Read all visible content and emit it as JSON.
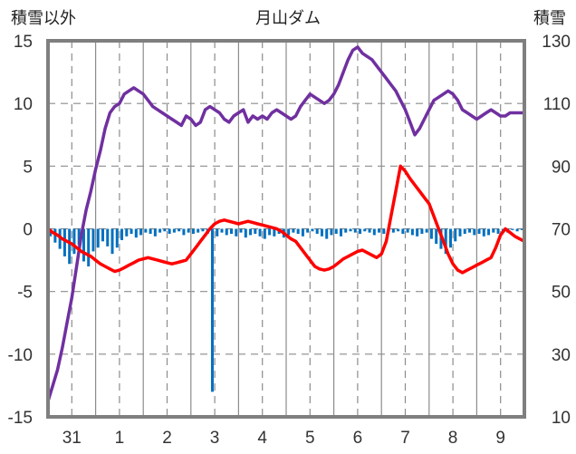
{
  "chart_data": {
    "type": "line",
    "title": "月山ダム",
    "left_axis_label": "積雪以外",
    "right_axis_label": "積雪",
    "x_tick_labels": [
      "31",
      "1",
      "2",
      "3",
      "4",
      "5",
      "6",
      "7",
      "8",
      "9"
    ],
    "x_tick_positions": [
      0.5,
      1.5,
      2.5,
      3.5,
      4.5,
      5.5,
      6.5,
      7.5,
      8.5,
      9.5
    ],
    "xlim": [
      0,
      10
    ],
    "left_ylim": [
      -15,
      15
    ],
    "left_ticks": [
      15,
      10,
      5,
      0,
      -5,
      -10,
      -15
    ],
    "right_ylim": [
      10,
      130
    ],
    "right_ticks": [
      130,
      110,
      90,
      70,
      50,
      30,
      10
    ],
    "grid": true,
    "series": [
      {
        "axis": "right",
        "color": "#7030a0",
        "values": [
          [
            0.0,
            15
          ],
          [
            0.1,
            20
          ],
          [
            0.2,
            25
          ],
          [
            0.3,
            32
          ],
          [
            0.4,
            40
          ],
          [
            0.5,
            48
          ],
          [
            0.6,
            58
          ],
          [
            0.7,
            68
          ],
          [
            0.8,
            76
          ],
          [
            0.9,
            82
          ],
          [
            1.0,
            89
          ],
          [
            1.1,
            95
          ],
          [
            1.2,
            102
          ],
          [
            1.3,
            107
          ],
          [
            1.4,
            109
          ],
          [
            1.5,
            110
          ],
          [
            1.6,
            113
          ],
          [
            1.7,
            114
          ],
          [
            1.8,
            115
          ],
          [
            1.9,
            114
          ],
          [
            2.0,
            113
          ],
          [
            2.1,
            111
          ],
          [
            2.2,
            109
          ],
          [
            2.3,
            108
          ],
          [
            2.4,
            107
          ],
          [
            2.5,
            106
          ],
          [
            2.6,
            105
          ],
          [
            2.7,
            104
          ],
          [
            2.8,
            103
          ],
          [
            2.9,
            106
          ],
          [
            3.0,
            105
          ],
          [
            3.1,
            103
          ],
          [
            3.2,
            104
          ],
          [
            3.3,
            108
          ],
          [
            3.4,
            109
          ],
          [
            3.5,
            108
          ],
          [
            3.6,
            107
          ],
          [
            3.7,
            105
          ],
          [
            3.8,
            104
          ],
          [
            3.9,
            106
          ],
          [
            4.0,
            107
          ],
          [
            4.1,
            108
          ],
          [
            4.2,
            104
          ],
          [
            4.3,
            106
          ],
          [
            4.4,
            105
          ],
          [
            4.5,
            106
          ],
          [
            4.6,
            105
          ],
          [
            4.7,
            107
          ],
          [
            4.8,
            108
          ],
          [
            4.9,
            107
          ],
          [
            5.0,
            106
          ],
          [
            5.1,
            105
          ],
          [
            5.2,
            106
          ],
          [
            5.3,
            109
          ],
          [
            5.4,
            111
          ],
          [
            5.5,
            113
          ],
          [
            5.6,
            112
          ],
          [
            5.7,
            111
          ],
          [
            5.8,
            110
          ],
          [
            5.9,
            111
          ],
          [
            6.0,
            113
          ],
          [
            6.1,
            116
          ],
          [
            6.2,
            120
          ],
          [
            6.3,
            124
          ],
          [
            6.4,
            127
          ],
          [
            6.5,
            128
          ],
          [
            6.6,
            126
          ],
          [
            6.7,
            125
          ],
          [
            6.8,
            124
          ],
          [
            6.9,
            122
          ],
          [
            7.0,
            120
          ],
          [
            7.1,
            118
          ],
          [
            7.2,
            116
          ],
          [
            7.3,
            114
          ],
          [
            7.4,
            111
          ],
          [
            7.5,
            108
          ],
          [
            7.6,
            104
          ],
          [
            7.7,
            100
          ],
          [
            7.8,
            102
          ],
          [
            7.9,
            105
          ],
          [
            8.0,
            108
          ],
          [
            8.1,
            111
          ],
          [
            8.2,
            112
          ],
          [
            8.3,
            113
          ],
          [
            8.4,
            114
          ],
          [
            8.5,
            113
          ],
          [
            8.6,
            111
          ],
          [
            8.7,
            108
          ],
          [
            8.8,
            107
          ],
          [
            8.9,
            106
          ],
          [
            9.0,
            105
          ],
          [
            9.1,
            106
          ],
          [
            9.2,
            107
          ],
          [
            9.3,
            108
          ],
          [
            9.4,
            107
          ],
          [
            9.5,
            106
          ],
          [
            9.6,
            106
          ],
          [
            9.7,
            107
          ],
          [
            9.8,
            107
          ],
          [
            9.9,
            107
          ],
          [
            10.0,
            107
          ]
        ]
      },
      {
        "axis": "left",
        "color": "#ff0000",
        "values": [
          [
            0.0,
            0.0
          ],
          [
            0.1,
            -0.3
          ],
          [
            0.2,
            -0.5
          ],
          [
            0.3,
            -0.8
          ],
          [
            0.4,
            -1.0
          ],
          [
            0.5,
            -1.2
          ],
          [
            0.6,
            -1.5
          ],
          [
            0.7,
            -1.8
          ],
          [
            0.8,
            -2.0
          ],
          [
            0.9,
            -2.2
          ],
          [
            1.0,
            -2.5
          ],
          [
            1.1,
            -2.8
          ],
          [
            1.2,
            -3.0
          ],
          [
            1.3,
            -3.2
          ],
          [
            1.4,
            -3.4
          ],
          [
            1.5,
            -3.3
          ],
          [
            1.6,
            -3.1
          ],
          [
            1.7,
            -2.9
          ],
          [
            1.8,
            -2.7
          ],
          [
            1.9,
            -2.5
          ],
          [
            2.0,
            -2.4
          ],
          [
            2.1,
            -2.3
          ],
          [
            2.2,
            -2.4
          ],
          [
            2.3,
            -2.5
          ],
          [
            2.4,
            -2.6
          ],
          [
            2.5,
            -2.7
          ],
          [
            2.6,
            -2.8
          ],
          [
            2.7,
            -2.7
          ],
          [
            2.8,
            -2.6
          ],
          [
            2.9,
            -2.5
          ],
          [
            3.0,
            -2.0
          ],
          [
            3.1,
            -1.5
          ],
          [
            3.2,
            -1.0
          ],
          [
            3.3,
            -0.5
          ],
          [
            3.4,
            0.0
          ],
          [
            3.5,
            0.4
          ],
          [
            3.6,
            0.6
          ],
          [
            3.7,
            0.7
          ],
          [
            3.8,
            0.6
          ],
          [
            3.9,
            0.5
          ],
          [
            4.0,
            0.4
          ],
          [
            4.1,
            0.5
          ],
          [
            4.2,
            0.6
          ],
          [
            4.3,
            0.5
          ],
          [
            4.4,
            0.4
          ],
          [
            4.5,
            0.3
          ],
          [
            4.6,
            0.2
          ],
          [
            4.7,
            0.1
          ],
          [
            4.8,
            0.0
          ],
          [
            4.9,
            -0.2
          ],
          [
            5.0,
            -0.5
          ],
          [
            5.1,
            -0.8
          ],
          [
            5.2,
            -1.0
          ],
          [
            5.3,
            -1.5
          ],
          [
            5.4,
            -2.0
          ],
          [
            5.5,
            -2.5
          ],
          [
            5.6,
            -3.0
          ],
          [
            5.7,
            -3.2
          ],
          [
            5.8,
            -3.3
          ],
          [
            5.9,
            -3.2
          ],
          [
            6.0,
            -3.0
          ],
          [
            6.1,
            -2.7
          ],
          [
            6.2,
            -2.4
          ],
          [
            6.3,
            -2.2
          ],
          [
            6.4,
            -2.0
          ],
          [
            6.5,
            -1.8
          ],
          [
            6.6,
            -1.7
          ],
          [
            6.7,
            -1.9
          ],
          [
            6.8,
            -2.1
          ],
          [
            6.9,
            -2.3
          ],
          [
            7.0,
            -2.0
          ],
          [
            7.1,
            -1.0
          ],
          [
            7.2,
            1.0
          ],
          [
            7.3,
            3.0
          ],
          [
            7.4,
            5.0
          ],
          [
            7.5,
            4.6
          ],
          [
            7.6,
            4.0
          ],
          [
            7.7,
            3.5
          ],
          [
            7.8,
            3.0
          ],
          [
            7.9,
            2.5
          ],
          [
            8.0,
            2.0
          ],
          [
            8.1,
            1.0
          ],
          [
            8.2,
            0.0
          ],
          [
            8.3,
            -1.0
          ],
          [
            8.4,
            -2.0
          ],
          [
            8.5,
            -2.8
          ],
          [
            8.6,
            -3.3
          ],
          [
            8.7,
            -3.5
          ],
          [
            8.8,
            -3.3
          ],
          [
            8.9,
            -3.1
          ],
          [
            9.0,
            -2.9
          ],
          [
            9.1,
            -2.7
          ],
          [
            9.2,
            -2.5
          ],
          [
            9.3,
            -2.3
          ],
          [
            9.4,
            -1.5
          ],
          [
            9.5,
            -0.5
          ],
          [
            9.6,
            0.0
          ],
          [
            9.7,
            -0.3
          ],
          [
            9.8,
            -0.6
          ],
          [
            9.9,
            -0.8
          ],
          [
            10.0,
            -1.0
          ]
        ]
      }
    ],
    "bars": {
      "axis": "left",
      "color": "#0070c0",
      "values": [
        [
          0.05,
          -0.6
        ],
        [
          0.15,
          -1.1
        ],
        [
          0.25,
          -1.6
        ],
        [
          0.35,
          -2.2
        ],
        [
          0.45,
          -2.8
        ],
        [
          0.55,
          -2.0
        ],
        [
          0.65,
          -1.3
        ],
        [
          0.75,
          -2.6
        ],
        [
          0.85,
          -3.0
        ],
        [
          0.95,
          -1.8
        ],
        [
          1.05,
          -1.5
        ],
        [
          1.15,
          -1.0
        ],
        [
          1.25,
          -1.4
        ],
        [
          1.35,
          -2.0
        ],
        [
          1.45,
          -1.5
        ],
        [
          1.55,
          -0.9
        ],
        [
          1.65,
          -0.6
        ],
        [
          1.75,
          -0.4
        ],
        [
          1.85,
          -0.7
        ],
        [
          1.95,
          -0.5
        ],
        [
          2.05,
          -0.3
        ],
        [
          2.15,
          -0.4
        ],
        [
          2.25,
          -0.6
        ],
        [
          2.35,
          -0.3
        ],
        [
          2.45,
          -0.2
        ],
        [
          2.55,
          -0.4
        ],
        [
          2.65,
          -0.3
        ],
        [
          2.75,
          -0.2
        ],
        [
          2.85,
          -0.5
        ],
        [
          2.95,
          -0.3
        ],
        [
          3.05,
          -0.4
        ],
        [
          3.15,
          -0.3
        ],
        [
          3.25,
          -0.2
        ],
        [
          3.35,
          -0.4
        ],
        [
          3.45,
          -13.0
        ],
        [
          3.55,
          -0.6
        ],
        [
          3.65,
          -0.3
        ],
        [
          3.75,
          -0.5
        ],
        [
          3.85,
          -0.4
        ],
        [
          3.95,
          -0.6
        ],
        [
          4.05,
          -0.3
        ],
        [
          4.15,
          -0.7
        ],
        [
          4.25,
          -0.5
        ],
        [
          4.35,
          -0.4
        ],
        [
          4.45,
          -0.6
        ],
        [
          4.55,
          -0.8
        ],
        [
          4.65,
          -0.5
        ],
        [
          4.75,
          -0.6
        ],
        [
          4.85,
          -0.4
        ],
        [
          4.95,
          -0.7
        ],
        [
          5.05,
          -0.5
        ],
        [
          5.15,
          -0.3
        ],
        [
          5.25,
          -0.4
        ],
        [
          5.35,
          -0.6
        ],
        [
          5.45,
          -0.3
        ],
        [
          5.55,
          -0.2
        ],
        [
          5.65,
          -0.4
        ],
        [
          5.75,
          -0.6
        ],
        [
          5.85,
          -0.8
        ],
        [
          5.95,
          -0.5
        ],
        [
          6.05,
          -0.4
        ],
        [
          6.15,
          -0.6
        ],
        [
          6.25,
          -0.3
        ],
        [
          6.35,
          -0.2
        ],
        [
          6.45,
          -0.3
        ],
        [
          6.55,
          -0.4
        ],
        [
          6.65,
          -0.2
        ],
        [
          6.75,
          -0.3
        ],
        [
          6.85,
          -0.5
        ],
        [
          6.95,
          -0.3
        ],
        [
          7.05,
          -0.4
        ],
        [
          7.15,
          -0.2
        ],
        [
          7.25,
          -0.3
        ],
        [
          7.35,
          -0.2
        ],
        [
          7.45,
          -0.4
        ],
        [
          7.55,
          -0.3
        ],
        [
          7.65,
          -0.5
        ],
        [
          7.75,
          -0.6
        ],
        [
          7.85,
          -0.4
        ],
        [
          7.95,
          -0.3
        ],
        [
          8.05,
          -0.8
        ],
        [
          8.15,
          -1.2
        ],
        [
          8.25,
          -1.6
        ],
        [
          8.35,
          -2.0
        ],
        [
          8.45,
          -1.5
        ],
        [
          8.55,
          -1.0
        ],
        [
          8.65,
          -0.6
        ],
        [
          8.75,
          -0.4
        ],
        [
          8.85,
          -0.3
        ],
        [
          8.95,
          -0.5
        ],
        [
          9.05,
          -0.4
        ],
        [
          9.15,
          -0.6
        ],
        [
          9.25,
          -0.5
        ],
        [
          9.35,
          -0.3
        ],
        [
          9.45,
          -0.4
        ],
        [
          9.55,
          -0.2
        ],
        [
          9.65,
          -0.3
        ],
        [
          9.75,
          -0.1
        ],
        [
          9.85,
          -0.2
        ],
        [
          9.95,
          -0.1
        ]
      ]
    }
  }
}
